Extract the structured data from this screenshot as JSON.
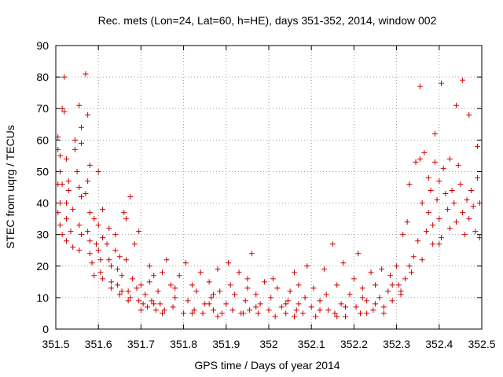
{
  "chart_data": {
    "type": "scatter",
    "title": "Rec. mets (Lon=24, Lat=60, h=HE), days 351-352, 2014, window 002",
    "xlabel": "GPS time / Days of year 2014",
    "ylabel": "STEC from uqrg / TECUs",
    "xlim": [
      351.5,
      352.5
    ],
    "ylim": [
      0,
      90
    ],
    "xticks": [
      "351.5",
      "351.6",
      "351.7",
      "351.8",
      "351.9",
      "352",
      "352.1",
      "352.2",
      "352.3",
      "352.4",
      "352.5"
    ],
    "yticks": [
      "0",
      "10",
      "20",
      "30",
      "40",
      "50",
      "60",
      "70",
      "80",
      "90"
    ],
    "grid": true,
    "marker": "+",
    "color": "#cc0000",
    "series": [
      {
        "name": "STEC",
        "points": [
          [
            351.505,
            61
          ],
          [
            351.505,
            57
          ],
          [
            351.51,
            50
          ],
          [
            351.505,
            46
          ],
          [
            351.515,
            46
          ],
          [
            351.51,
            40
          ],
          [
            351.505,
            37
          ],
          [
            351.51,
            33
          ],
          [
            351.515,
            30
          ],
          [
            351.51,
            55
          ],
          [
            351.52,
            80
          ],
          [
            351.515,
            70
          ],
          [
            351.52,
            69
          ],
          [
            351.525,
            54
          ],
          [
            351.53,
            47
          ],
          [
            351.53,
            44
          ],
          [
            351.525,
            40
          ],
          [
            351.54,
            38
          ],
          [
            351.525,
            35
          ],
          [
            351.535,
            31
          ],
          [
            351.525,
            28
          ],
          [
            351.54,
            26
          ],
          [
            351.545,
            60
          ],
          [
            351.545,
            57
          ],
          [
            351.55,
            50
          ],
          [
            351.555,
            71
          ],
          [
            351.56,
            59
          ],
          [
            351.555,
            45
          ],
          [
            351.56,
            42
          ],
          [
            351.555,
            33
          ],
          [
            351.56,
            30
          ],
          [
            351.555,
            25
          ],
          [
            351.57,
            81
          ],
          [
            351.575,
            68
          ],
          [
            351.575,
            47
          ],
          [
            351.57,
            43
          ],
          [
            351.58,
            37
          ],
          [
            351.575,
            31
          ],
          [
            351.58,
            28
          ],
          [
            351.58,
            24
          ],
          [
            351.585,
            21
          ],
          [
            351.59,
            35
          ],
          [
            351.595,
            27
          ],
          [
            351.6,
            50
          ],
          [
            351.6,
            33
          ],
          [
            351.6,
            25
          ],
          [
            351.605,
            22
          ],
          [
            351.61,
            38
          ],
          [
            351.605,
            18
          ],
          [
            351.61,
            16
          ],
          [
            351.62,
            27
          ],
          [
            351.625,
            32
          ],
          [
            351.625,
            22
          ],
          [
            351.63,
            20
          ],
          [
            351.63,
            15
          ],
          [
            351.64,
            30
          ],
          [
            351.64,
            25
          ],
          [
            351.645,
            19
          ],
          [
            351.645,
            14
          ],
          [
            351.65,
            23
          ],
          [
            351.655,
            17
          ],
          [
            351.655,
            12
          ],
          [
            351.66,
            37
          ],
          [
            351.665,
            35
          ],
          [
            351.665,
            22
          ],
          [
            351.67,
            12
          ],
          [
            351.675,
            42
          ],
          [
            351.675,
            10
          ],
          [
            351.68,
            16
          ],
          [
            351.685,
            27
          ],
          [
            351.69,
            13
          ],
          [
            351.695,
            31
          ],
          [
            351.695,
            9
          ],
          [
            351.7,
            14
          ],
          [
            351.705,
            8
          ],
          [
            351.71,
            11
          ],
          [
            351.715,
            7
          ],
          [
            351.72,
            15
          ],
          [
            351.725,
            9
          ],
          [
            351.73,
            17
          ],
          [
            351.735,
            6
          ],
          [
            351.74,
            12
          ],
          [
            351.745,
            8
          ],
          [
            351.75,
            18
          ],
          [
            351.76,
            22
          ],
          [
            351.755,
            6
          ],
          [
            351.77,
            14
          ],
          [
            351.775,
            7
          ],
          [
            351.78,
            10
          ],
          [
            351.79,
            17
          ],
          [
            351.8,
            5
          ],
          [
            351.805,
            21
          ],
          [
            351.81,
            9
          ],
          [
            351.82,
            14
          ],
          [
            351.825,
            6
          ],
          [
            351.83,
            12
          ],
          [
            351.84,
            18
          ],
          [
            351.845,
            5
          ],
          [
            351.85,
            8
          ],
          [
            351.86,
            15
          ],
          [
            351.865,
            10
          ],
          [
            351.87,
            6
          ],
          [
            351.88,
            19
          ],
          [
            351.885,
            12
          ],
          [
            351.89,
            5
          ],
          [
            351.9,
            8
          ],
          [
            351.905,
            21
          ],
          [
            351.91,
            14
          ],
          [
            351.915,
            6
          ],
          [
            351.92,
            11
          ],
          [
            351.93,
            18
          ],
          [
            351.935,
            5
          ],
          [
            351.945,
            9
          ],
          [
            351.95,
            13
          ],
          [
            351.955,
            6
          ],
          [
            351.96,
            24
          ],
          [
            351.97,
            11
          ],
          [
            351.975,
            5
          ],
          [
            351.98,
            8
          ],
          [
            351.99,
            15
          ],
          [
            352.0,
            6
          ],
          [
            352.005,
            10
          ],
          [
            352.01,
            16
          ],
          [
            352.015,
            4
          ],
          [
            352.02,
            13
          ],
          [
            352.03,
            7
          ],
          [
            352.04,
            5
          ],
          [
            352.045,
            9
          ],
          [
            352.05,
            12
          ],
          [
            352.06,
            18
          ],
          [
            352.065,
            6
          ],
          [
            352.07,
            14
          ],
          [
            352.08,
            5
          ],
          [
            352.085,
            10
          ],
          [
            352.09,
            20
          ],
          [
            352.1,
            7
          ],
          [
            352.105,
            13
          ],
          [
            352.11,
            4
          ],
          [
            352.12,
            9
          ],
          [
            352.13,
            19
          ],
          [
            352.135,
            11
          ],
          [
            352.14,
            6
          ],
          [
            352.15,
            27
          ],
          [
            352.155,
            5
          ],
          [
            352.16,
            14
          ],
          [
            352.17,
            8
          ],
          [
            352.175,
            21
          ],
          [
            352.18,
            4
          ],
          [
            352.19,
            11
          ],
          [
            352.2,
            16
          ],
          [
            352.205,
            7
          ],
          [
            352.21,
            24
          ],
          [
            352.215,
            5
          ],
          [
            352.22,
            13
          ],
          [
            352.23,
            9
          ],
          [
            352.24,
            18
          ],
          [
            352.245,
            6
          ],
          [
            352.25,
            14
          ],
          [
            352.26,
            10
          ],
          [
            352.265,
            19
          ],
          [
            352.27,
            7
          ],
          [
            352.28,
            12
          ],
          [
            352.285,
            17
          ],
          [
            352.29,
            9
          ],
          [
            352.3,
            20
          ],
          [
            352.305,
            14
          ],
          [
            352.31,
            11
          ],
          [
            352.315,
            30
          ],
          [
            352.32,
            16
          ],
          [
            352.325,
            34
          ],
          [
            352.33,
            46
          ],
          [
            352.335,
            18
          ],
          [
            352.34,
            23
          ],
          [
            352.345,
            53
          ],
          [
            352.35,
            28
          ],
          [
            352.355,
            54
          ],
          [
            352.355,
            77
          ],
          [
            352.36,
            40
          ],
          [
            352.36,
            22
          ],
          [
            352.365,
            56
          ],
          [
            352.37,
            31
          ],
          [
            352.375,
            48
          ],
          [
            352.375,
            37
          ],
          [
            352.38,
            44
          ],
          [
            352.385,
            33
          ],
          [
            352.385,
            27
          ],
          [
            352.39,
            62
          ],
          [
            352.39,
            53
          ],
          [
            352.395,
            41
          ],
          [
            352.4,
            47
          ],
          [
            352.4,
            35
          ],
          [
            352.405,
            78
          ],
          [
            352.405,
            29
          ],
          [
            352.41,
            51
          ],
          [
            352.415,
            43
          ],
          [
            352.42,
            38
          ],
          [
            352.425,
            54
          ],
          [
            352.425,
            32
          ],
          [
            352.43,
            44
          ],
          [
            352.435,
            40
          ],
          [
            352.44,
            71
          ],
          [
            352.44,
            34
          ],
          [
            352.445,
            52
          ],
          [
            352.45,
            46
          ],
          [
            352.455,
            37
          ],
          [
            352.455,
            79
          ],
          [
            352.46,
            30
          ],
          [
            352.465,
            41
          ],
          [
            352.47,
            68
          ],
          [
            352.47,
            35
          ],
          [
            352.475,
            44
          ],
          [
            352.48,
            39
          ],
          [
            352.485,
            31
          ],
          [
            352.49,
            58
          ],
          [
            352.49,
            48
          ],
          [
            352.495,
            40
          ],
          [
            352.495,
            29
          ],
          [
            351.56,
            64
          ],
          [
            351.58,
            52
          ],
          [
            351.61,
            29
          ],
          [
            351.72,
            20
          ],
          [
            351.78,
            13
          ],
          [
            351.86,
            8
          ],
          [
            351.95,
            16
          ],
          [
            352.04,
            8
          ],
          [
            352.12,
            6
          ],
          [
            352.22,
            10
          ],
          [
            352.29,
            14
          ],
          [
            352.33,
            20
          ],
          [
            352.4,
            27
          ],
          [
            351.7,
            6
          ],
          [
            351.75,
            5
          ],
          [
            351.82,
            5
          ],
          [
            351.88,
            4
          ],
          [
            351.94,
            5
          ],
          [
            352.06,
            4
          ],
          [
            352.16,
            4
          ],
          [
            352.23,
            5
          ],
          [
            352.27,
            5
          ],
          [
            351.67,
            9
          ],
          [
            351.63,
            13
          ],
          [
            351.59,
            17
          ],
          [
            351.65,
            11
          ],
          [
            351.73,
            8
          ],
          [
            351.87,
            11
          ],
          [
            351.97,
            7
          ],
          [
            352.07,
            8
          ],
          [
            352.18,
            7
          ],
          [
            352.25,
            8
          ],
          [
            352.31,
            12
          ]
        ]
      }
    ]
  }
}
